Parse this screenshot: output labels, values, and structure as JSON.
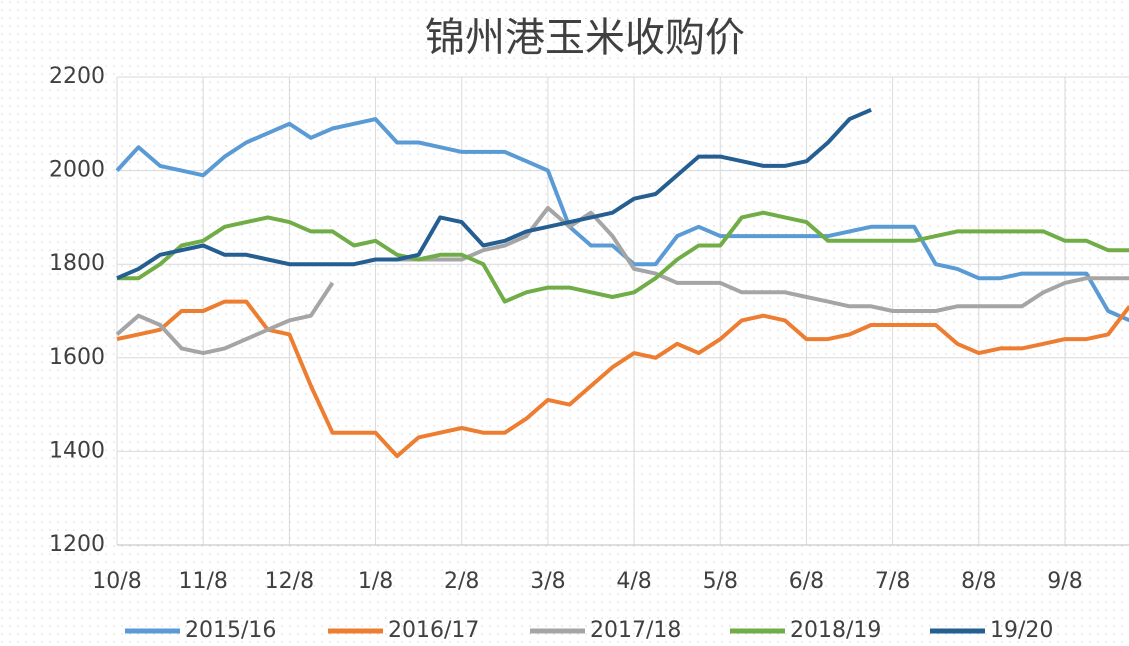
{
  "chart_data": {
    "type": "line",
    "title": "锦州港玉米收购价",
    "categories": [
      "10/8",
      null,
      null,
      null,
      "11/8",
      null,
      null,
      null,
      "12/8",
      null,
      null,
      null,
      "1/8",
      null,
      null,
      null,
      "2/8",
      null,
      null,
      null,
      "3/8",
      null,
      null,
      null,
      "4/8",
      null,
      null,
      null,
      "5/8",
      null,
      null,
      null,
      "6/8",
      null,
      null,
      null,
      "7/8",
      null,
      null,
      null,
      "8/8",
      null,
      null,
      null,
      "9/8",
      null,
      null,
      null
    ],
    "ylim": [
      1200,
      2200
    ],
    "yticks": [
      1200,
      1400,
      1600,
      1800,
      2000,
      2200
    ],
    "grid": true,
    "legend": "bottom",
    "series": [
      {
        "name": "2015/16",
        "color": "#5b9bd5",
        "values": [
          2000,
          2050,
          2010,
          2000,
          1990,
          2030,
          2060,
          2080,
          2100,
          2070,
          2090,
          2100,
          2110,
          2060,
          2060,
          2050,
          2040,
          2040,
          2040,
          2020,
          2000,
          1880,
          1840,
          1840,
          1800,
          1800,
          1860,
          1880,
          1860,
          1860,
          1860,
          1860,
          1860,
          1860,
          1870,
          1880,
          1880,
          1880,
          1800,
          1790,
          1770,
          1770,
          1780,
          1780,
          1780,
          1780,
          1700,
          1680
        ]
      },
      {
        "name": "2016/17",
        "color": "#ed7d31",
        "values": [
          1640,
          1650,
          1660,
          1700,
          1700,
          1720,
          1720,
          1660,
          1650,
          1540,
          1440,
          1440,
          1440,
          1390,
          1430,
          1440,
          1450,
          1440,
          1440,
          1470,
          1510,
          1500,
          1540,
          1580,
          1610,
          1600,
          1630,
          1610,
          1640,
          1680,
          1690,
          1680,
          1640,
          1640,
          1650,
          1670,
          1670,
          1670,
          1670,
          1630,
          1610,
          1620,
          1620,
          1630,
          1640,
          1640,
          1650,
          1710
        ]
      },
      {
        "name": "2017/18",
        "color": "#a5a5a5",
        "values": [
          1650,
          1690,
          1670,
          1620,
          1610,
          1620,
          1640,
          1660,
          1680,
          1690,
          1760,
          null,
          1810,
          1810,
          1810,
          1810,
          1810,
          1830,
          1840,
          1860,
          1920,
          1880,
          1910,
          1860,
          1790,
          1780,
          1760,
          1760,
          1760,
          1740,
          1740,
          1740,
          1730,
          1720,
          1710,
          1710,
          1700,
          1700,
          1700,
          1710,
          1710,
          1710,
          1710,
          1740,
          1760,
          1770,
          1770,
          1770
        ]
      },
      {
        "name": "2018/19",
        "color": "#70ad47",
        "values": [
          1770,
          1770,
          1800,
          1840,
          1850,
          1880,
          1890,
          1900,
          1890,
          1870,
          1870,
          1840,
          1850,
          1820,
          1810,
          1820,
          1820,
          1800,
          1720,
          1740,
          1750,
          1750,
          1740,
          1730,
          1740,
          1770,
          1810,
          1840,
          1840,
          1900,
          1910,
          1900,
          1890,
          1850,
          1850,
          1850,
          1850,
          1850,
          1860,
          1870,
          1870,
          1870,
          1870,
          1870,
          1850,
          1850,
          1830,
          1830
        ]
      },
      {
        "name": "19/20",
        "color": "#255e91",
        "values": [
          1770,
          1790,
          1820,
          1830,
          1840,
          1820,
          1820,
          1810,
          1800,
          1800,
          1800,
          1800,
          1810,
          1810,
          1820,
          1900,
          1890,
          1840,
          1850,
          1870,
          1880,
          1890,
          1900,
          1910,
          1940,
          1950,
          1990,
          2030,
          2030,
          2020,
          2010,
          2010,
          2020,
          2060,
          2110,
          2130,
          null,
          null,
          null,
          null,
          null,
          null,
          null,
          null,
          null,
          null,
          null,
          null
        ]
      }
    ]
  }
}
